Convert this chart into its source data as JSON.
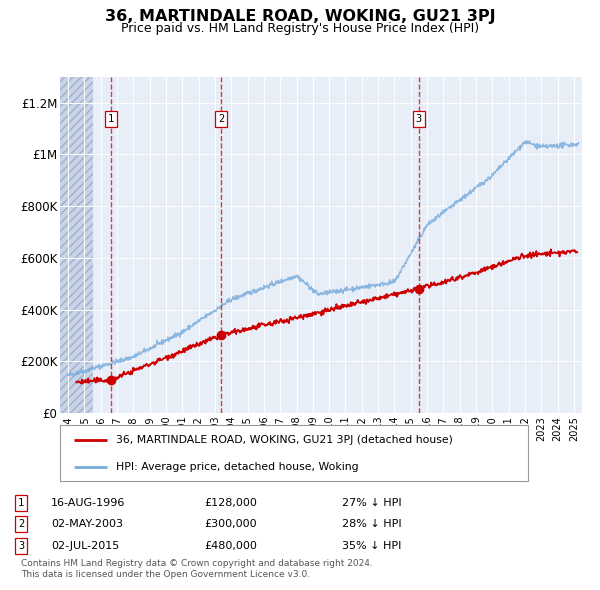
{
  "title": "36, MARTINDALE ROAD, WOKING, GU21 3PJ",
  "subtitle": "Price paid vs. HM Land Registry's House Price Index (HPI)",
  "ylim": [
    0,
    1300000
  ],
  "xlim_start": 1993.5,
  "xlim_end": 2025.5,
  "yticks": [
    0,
    200000,
    400000,
    600000,
    800000,
    1000000,
    1200000
  ],
  "ytick_labels": [
    "£0",
    "£200K",
    "£400K",
    "£600K",
    "£800K",
    "£1M",
    "£1.2M"
  ],
  "background_color": "#e8eef8",
  "sale_dates": [
    1996.62,
    2003.37,
    2015.5
  ],
  "sale_prices": [
    128000,
    300000,
    480000
  ],
  "sale_labels": [
    "1",
    "2",
    "3"
  ],
  "sale_date_strs": [
    "16-AUG-1996",
    "02-MAY-2003",
    "02-JUL-2015"
  ],
  "sale_price_strs": [
    "£128,000",
    "£300,000",
    "£480,000"
  ],
  "sale_below_hpi": [
    "27% ↓ HPI",
    "28% ↓ HPI",
    "35% ↓ HPI"
  ],
  "legend_line1": "36, MARTINDALE ROAD, WOKING, GU21 3PJ (detached house)",
  "legend_line2": "HPI: Average price, detached house, Woking",
  "footnote1": "Contains HM Land Registry data © Crown copyright and database right 2024.",
  "footnote2": "This data is licensed under the Open Government Licence v3.0.",
  "red_line_color": "#cc0000",
  "blue_line_color": "#7aaddc",
  "dot_color": "#cc0000",
  "hatch_end": 1995.5
}
